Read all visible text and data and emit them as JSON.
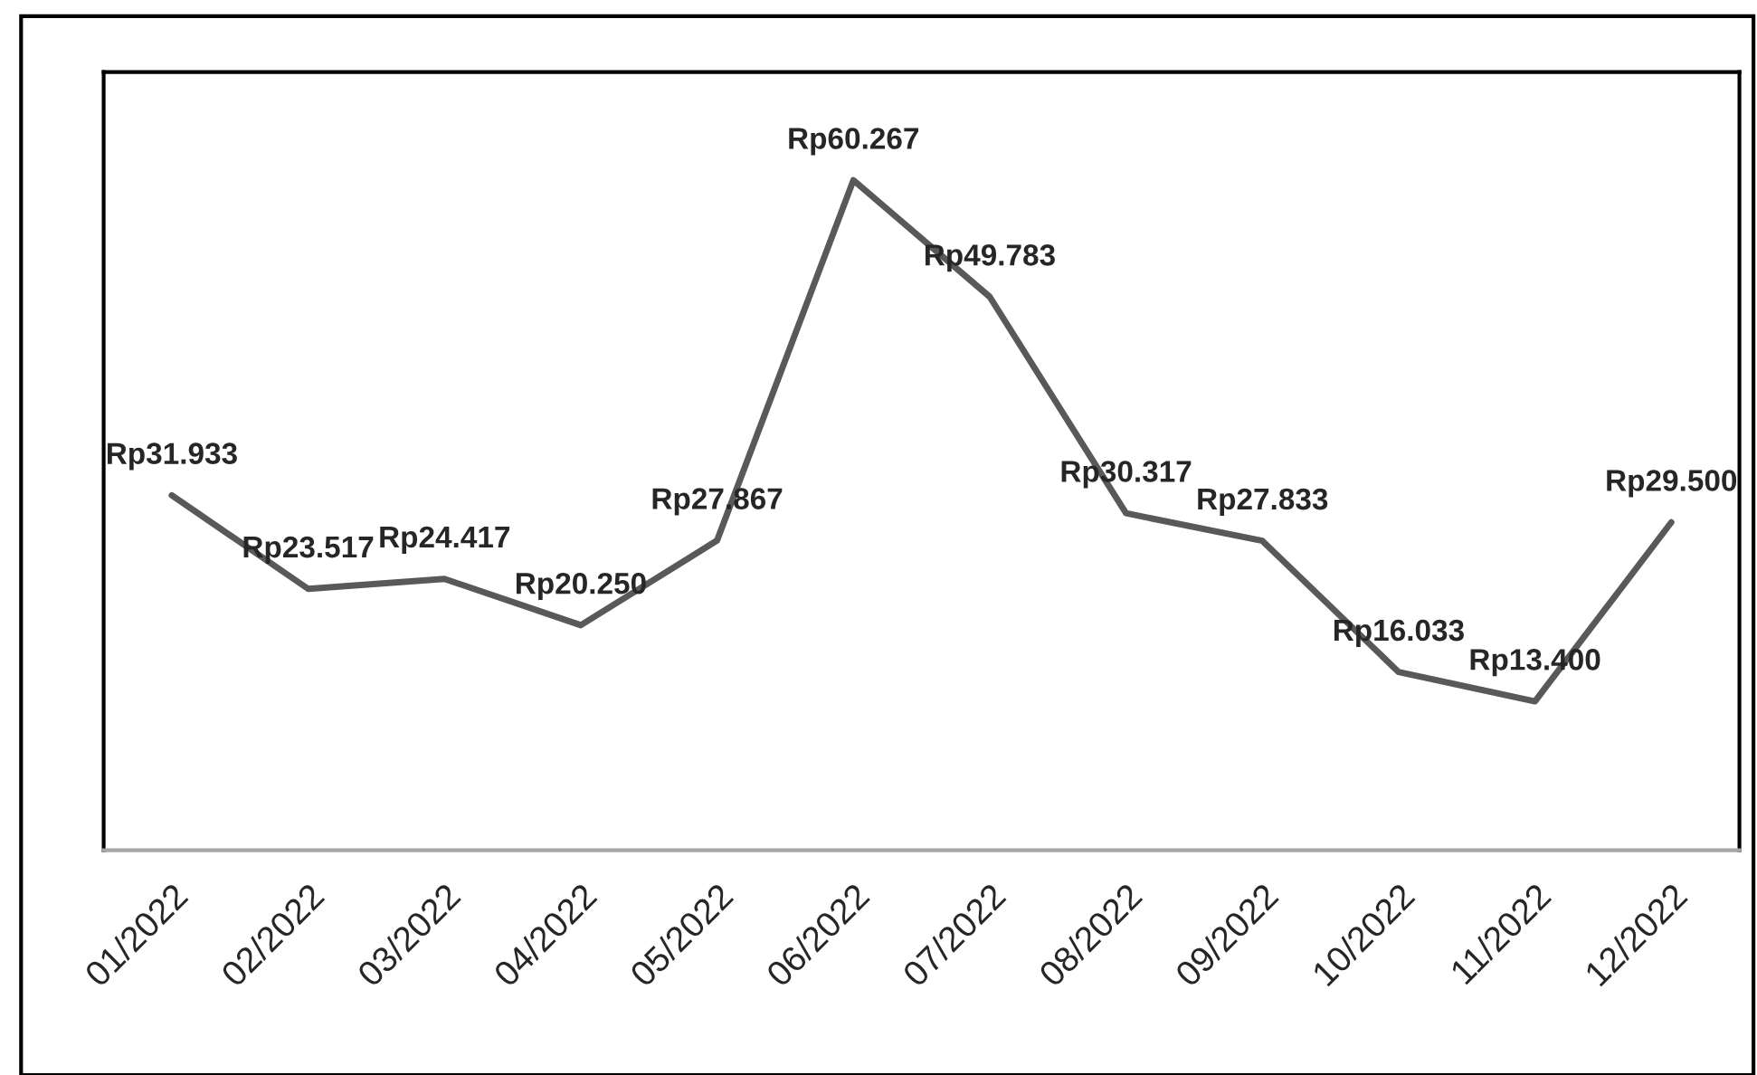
{
  "chart_data": {
    "type": "line",
    "categories": [
      "01/2022",
      "02/2022",
      "03/2022",
      "04/2022",
      "05/2022",
      "06/2022",
      "07/2022",
      "08/2022",
      "09/2022",
      "10/2022",
      "11/2022",
      "12/2022"
    ],
    "series": [
      {
        "color": "#595959",
        "values": [
          31933,
          23517,
          24417,
          20250,
          27867,
          60267,
          49783,
          30317,
          27833,
          16033,
          13400,
          29500
        ],
        "value_labels": [
          "Rp31.933",
          "Rp23.517",
          "Rp24.417",
          "Rp20.250",
          "Rp27.867",
          "Rp60.267",
          "Rp49.783",
          "Rp30.317",
          "Rp27.833",
          "Rp16.033",
          "Rp13.400",
          "Rp29.500"
        ]
      }
    ],
    "ylim": [
      0,
      70000
    ],
    "tick_labels": "x",
    "grid": false,
    "legend": false,
    "marker": "none",
    "line_style": "solid"
  }
}
